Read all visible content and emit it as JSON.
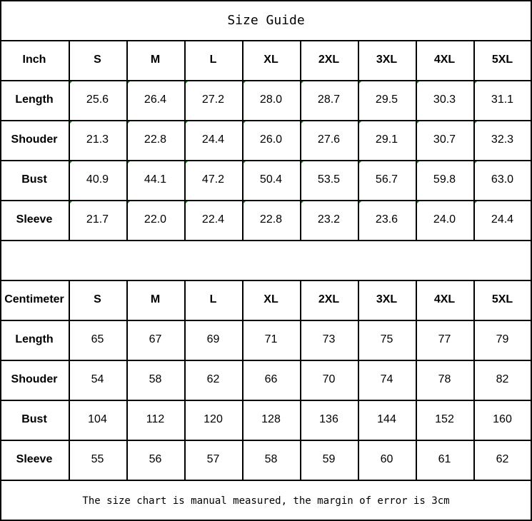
{
  "title": "Size Guide",
  "sizes": [
    "S",
    "M",
    "L",
    "XL",
    "2XL",
    "3XL",
    "4XL",
    "5XL"
  ],
  "tables": [
    {
      "unit": "Inch",
      "text_number_indicator": true,
      "rows": [
        {
          "label": "Length",
          "values": [
            "25.6",
            "26.4",
            "27.2",
            "28.0",
            "28.7",
            "29.5",
            "30.3",
            "31.1"
          ]
        },
        {
          "label": "Shouder",
          "values": [
            "21.3",
            "22.8",
            "24.4",
            "26.0",
            "27.6",
            "29.1",
            "30.7",
            "32.3"
          ]
        },
        {
          "label": "Bust",
          "values": [
            "40.9",
            "44.1",
            "47.2",
            "50.4",
            "53.5",
            "56.7",
            "59.8",
            "63.0"
          ]
        },
        {
          "label": "Sleeve",
          "values": [
            "21.7",
            "22.0",
            "22.4",
            "22.8",
            "23.2",
            "23.6",
            "24.0",
            "24.4"
          ]
        }
      ]
    },
    {
      "unit": "Centimeter",
      "text_number_indicator": false,
      "rows": [
        {
          "label": "Length",
          "values": [
            "65",
            "67",
            "69",
            "71",
            "73",
            "75",
            "77",
            "79"
          ]
        },
        {
          "label": "Shouder",
          "values": [
            "54",
            "58",
            "62",
            "66",
            "70",
            "74",
            "78",
            "82"
          ]
        },
        {
          "label": "Bust",
          "values": [
            "104",
            "112",
            "120",
            "128",
            "136",
            "144",
            "152",
            "160"
          ]
        },
        {
          "label": "Sleeve",
          "values": [
            "55",
            "56",
            "57",
            "58",
            "59",
            "60",
            "61",
            "62"
          ]
        }
      ]
    }
  ],
  "footer": "The size chart is manual measured, the margin of error is 3cm",
  "colors": {
    "border": "#000000",
    "indicator": "#1a8a1a"
  }
}
